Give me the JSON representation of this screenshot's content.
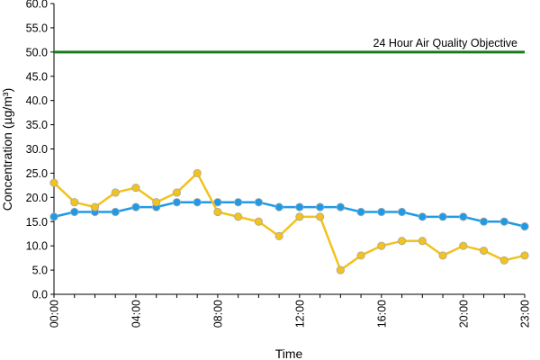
{
  "chart_data": {
    "type": "line",
    "title": "",
    "xlabel": "Time",
    "ylabel": "Concentration (µg/m³)",
    "ylim": [
      0,
      60
    ],
    "y_ticks": [
      "0.0",
      "5.0",
      "10.0",
      "15.0",
      "20.0",
      "25.0",
      "30.0",
      "35.0",
      "40.0",
      "45.0",
      "50.0",
      "55.0",
      "60.0"
    ],
    "y_tick_values": [
      0,
      5,
      10,
      15,
      20,
      25,
      30,
      35,
      40,
      45,
      50,
      55,
      60
    ],
    "x_hours": [
      0,
      1,
      2,
      3,
      4,
      5,
      6,
      7,
      8,
      9,
      10,
      11,
      12,
      13,
      14,
      15,
      16,
      17,
      18,
      19,
      20,
      21,
      22,
      23
    ],
    "x_tick_hours": [
      0,
      4,
      8,
      12,
      16,
      20,
      23
    ],
    "x_tick_labels": [
      "00:00",
      "04:00",
      "08:00",
      "12:00",
      "16:00",
      "20:00",
      "23:00"
    ],
    "grid": false,
    "series": [
      {
        "color": "#1e9be8",
        "values": [
          16,
          17,
          17,
          17,
          18,
          18,
          19,
          19,
          19,
          19,
          19,
          18,
          18,
          18,
          18,
          17,
          17,
          17,
          16,
          16,
          16,
          15,
          15,
          14
        ]
      },
      {
        "color": "#f2c21d",
        "values": [
          23,
          19,
          18,
          21,
          22,
          19,
          21,
          25,
          17,
          16,
          15,
          12,
          16,
          16,
          5,
          8,
          10,
          11,
          11,
          8,
          10,
          9,
          7,
          8
        ]
      }
    ],
    "reference_line": {
      "value": 50,
      "label": "24 Hour Air Quality Objective",
      "color": "#1a7a1a"
    }
  }
}
